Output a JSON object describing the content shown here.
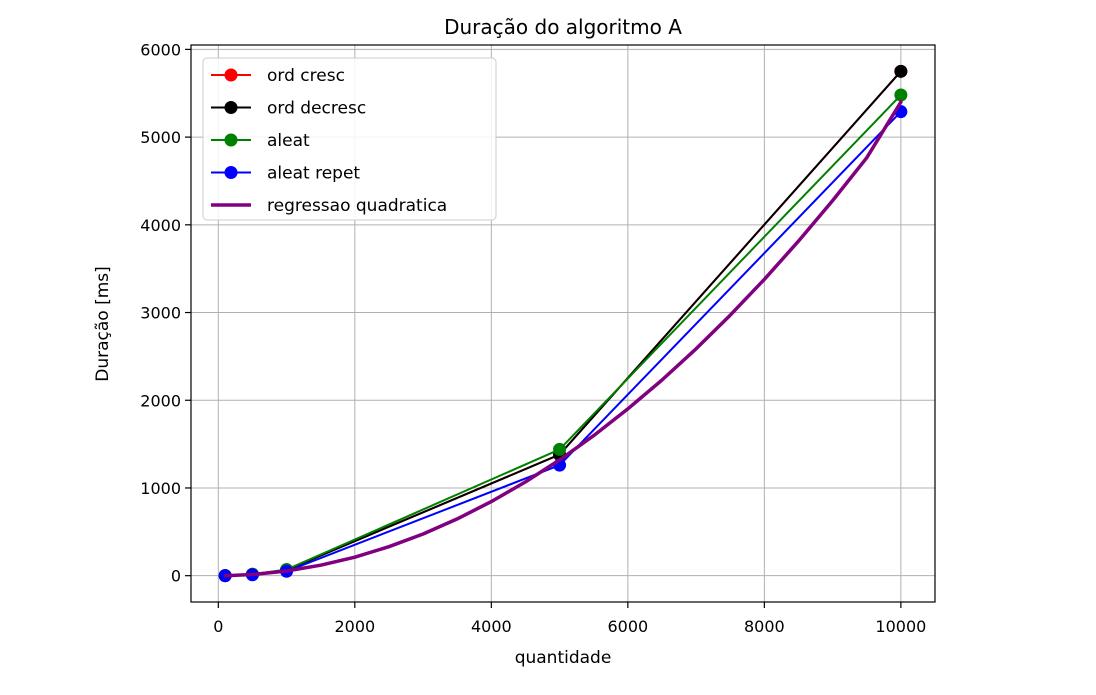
{
  "chart_data": {
    "type": "line",
    "title": "Duração do algoritmo A",
    "xlabel": "quantidade",
    "ylabel": "Duração [ms]",
    "xlim": [
      -400,
      10500
    ],
    "ylim": [
      -300,
      6050
    ],
    "xticks": [
      0,
      2000,
      4000,
      6000,
      8000,
      10000
    ],
    "yticks": [
      0,
      1000,
      2000,
      3000,
      4000,
      5000,
      6000
    ],
    "grid": true,
    "legend_position": "top-left",
    "series": [
      {
        "name": "ord cresc",
        "color": "#ff0000",
        "marker": true,
        "x": [
          100,
          500,
          1000,
          5000,
          10000
        ],
        "y": [
          1,
          15,
          65,
          1380,
          5750
        ]
      },
      {
        "name": "ord decresc",
        "color": "#000000",
        "marker": true,
        "x": [
          100,
          500,
          1000,
          5000,
          10000
        ],
        "y": [
          1,
          15,
          65,
          1380,
          5750
        ]
      },
      {
        "name": "aleat",
        "color": "#008000",
        "marker": true,
        "x": [
          100,
          500,
          1000,
          5000,
          10000
        ],
        "y": [
          1,
          16,
          70,
          1440,
          5480
        ]
      },
      {
        "name": "aleat repet",
        "color": "#0000ff",
        "marker": true,
        "x": [
          100,
          500,
          1000,
          5000,
          10000
        ],
        "y": [
          0,
          10,
          50,
          1260,
          5290
        ]
      },
      {
        "name": "regressao quadratica",
        "color": "#800080",
        "marker": false,
        "width": 3.5,
        "x": [
          100,
          500,
          1000,
          1500,
          2000,
          2500,
          3000,
          3500,
          4000,
          4500,
          5000,
          5500,
          6000,
          6500,
          7000,
          7500,
          8000,
          8500,
          9000,
          9500,
          10000
        ],
        "y": [
          0,
          13,
          53,
          119,
          211,
          330,
          475,
          647,
          845,
          1069,
          1320,
          1597,
          1901,
          2231,
          2587,
          2970,
          3379,
          3814,
          4276,
          4764,
          5400
        ]
      }
    ]
  }
}
